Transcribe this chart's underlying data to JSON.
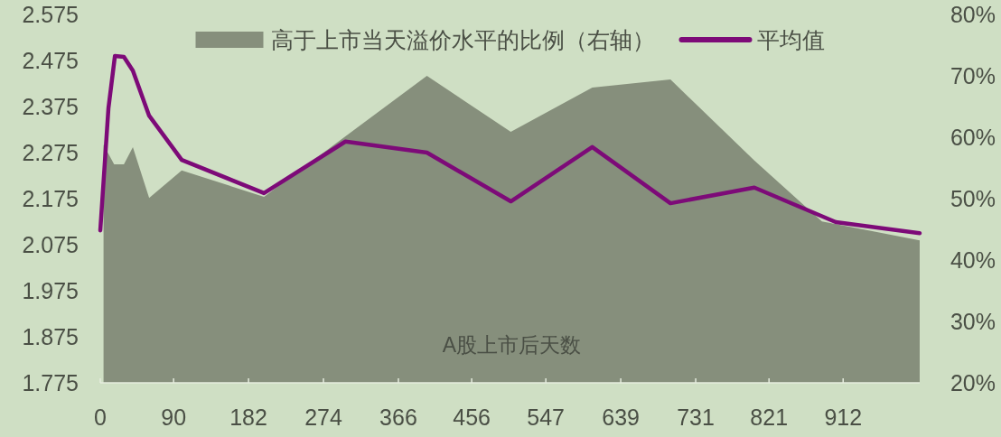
{
  "chart_data": {
    "type": "line",
    "xlabel": "A股上市后天数",
    "legend": "top",
    "grid": false,
    "xlim": [
      0,
      1006
    ],
    "xticks": [
      0,
      90,
      182,
      274,
      366,
      456,
      547,
      639,
      731,
      821,
      912
    ],
    "ylim": [
      1.775,
      2.575
    ],
    "yticks": [
      1.775,
      1.875,
      1.975,
      2.075,
      2.175,
      2.275,
      2.375,
      2.475,
      2.575
    ],
    "y2lim": [
      20,
      80
    ],
    "y2ticks": [
      {
        "value": 20,
        "label": "20%"
      },
      {
        "value": 30,
        "label": "30%"
      },
      {
        "value": 40,
        "label": "40%"
      },
      {
        "value": 50,
        "label": "50%"
      },
      {
        "value": 60,
        "label": "60%"
      },
      {
        "value": 70,
        "label": "70%"
      },
      {
        "value": 80,
        "label": "80%"
      }
    ],
    "series": [
      {
        "name": "高于上市当天溢价水平的比例（右轴）",
        "type": "area",
        "axis": "y2",
        "color": "#868f7c",
        "x": [
          4,
          17,
          29,
          40,
          60,
          100,
          201,
          401,
          504,
          604,
          700,
          803,
          886,
          1006
        ],
        "values": [
          58.8,
          55.6,
          55.6,
          58.4,
          50.1,
          54.6,
          50.3,
          70.0,
          60.9,
          68.1,
          69.4,
          56.2,
          46.3,
          43.2
        ]
      },
      {
        "name": "平均值",
        "color": "#7d0a78",
        "x": [
          0,
          10,
          18,
          29,
          40,
          60,
          100,
          201,
          301,
          401,
          504,
          604,
          700,
          803,
          903,
          1006
        ],
        "values": [
          2.106,
          2.371,
          2.485,
          2.483,
          2.453,
          2.355,
          2.259,
          2.187,
          2.299,
          2.275,
          2.169,
          2.287,
          2.165,
          2.199,
          2.124,
          2.1
        ]
      }
    ]
  }
}
